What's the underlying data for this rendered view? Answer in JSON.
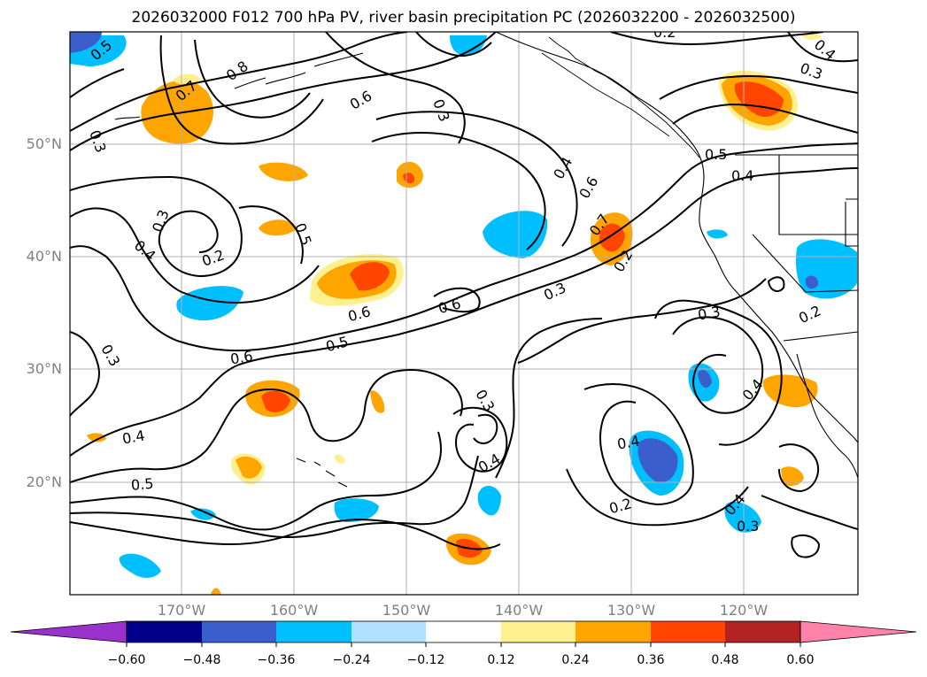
{
  "title": "2026032000 F012 700 hPa PV, river basin precipitation PC (2026032200 - 2026032500)",
  "map": {
    "projection": "PlateCarree",
    "lon_range_deg": [
      -180,
      -110
    ],
    "lat_range_deg": [
      10,
      60
    ],
    "gridlines": true,
    "lat_ticks": [
      "50°N",
      "40°N",
      "30°N",
      "20°N"
    ],
    "lon_ticks": [
      "170°W",
      "160°W",
      "150°W",
      "140°W",
      "130°W",
      "120°W"
    ],
    "contour_field": "700 hPa PV",
    "contour_labels": [
      "0.5",
      "0.7",
      "0.8",
      "0.6",
      "0.3",
      "0.4",
      "0.3",
      "0.3",
      "0.2",
      "0.4",
      "0.5",
      "0.3",
      "0.4",
      "0.6",
      "0.7",
      "0.2",
      "0.4",
      "0.6",
      "0.6",
      "0.3",
      "0.5",
      "0.6",
      "0.3",
      "0.3",
      "0.4",
      "0.4",
      "0.5",
      "0.4",
      "0.2",
      "0.4",
      "0.3",
      "0.4",
      "0.2",
      "0.3",
      "0.2",
      "0.5"
    ],
    "fill_field": "river basin precipitation PC"
  },
  "colorbar": {
    "orientation": "horizontal",
    "extend": "both",
    "levels": [
      -0.72,
      -0.6,
      -0.48,
      -0.36,
      -0.24,
      -0.12,
      0.12,
      0.24,
      0.36,
      0.48,
      0.6,
      0.72
    ],
    "colors": [
      "#9932cc",
      "#00008b",
      "#3a5fcd",
      "#00bfff",
      "#b0e2ff",
      "#ffffff",
      "#fff08f",
      "#ffa500",
      "#ff4500",
      "#b22222",
      "#ff82ab"
    ],
    "tick_labels": [
      "−0.60",
      "−0.48",
      "−0.36",
      "−0.24",
      "−0.12",
      "0.12",
      "0.24",
      "0.36",
      "0.48",
      "0.60"
    ]
  }
}
